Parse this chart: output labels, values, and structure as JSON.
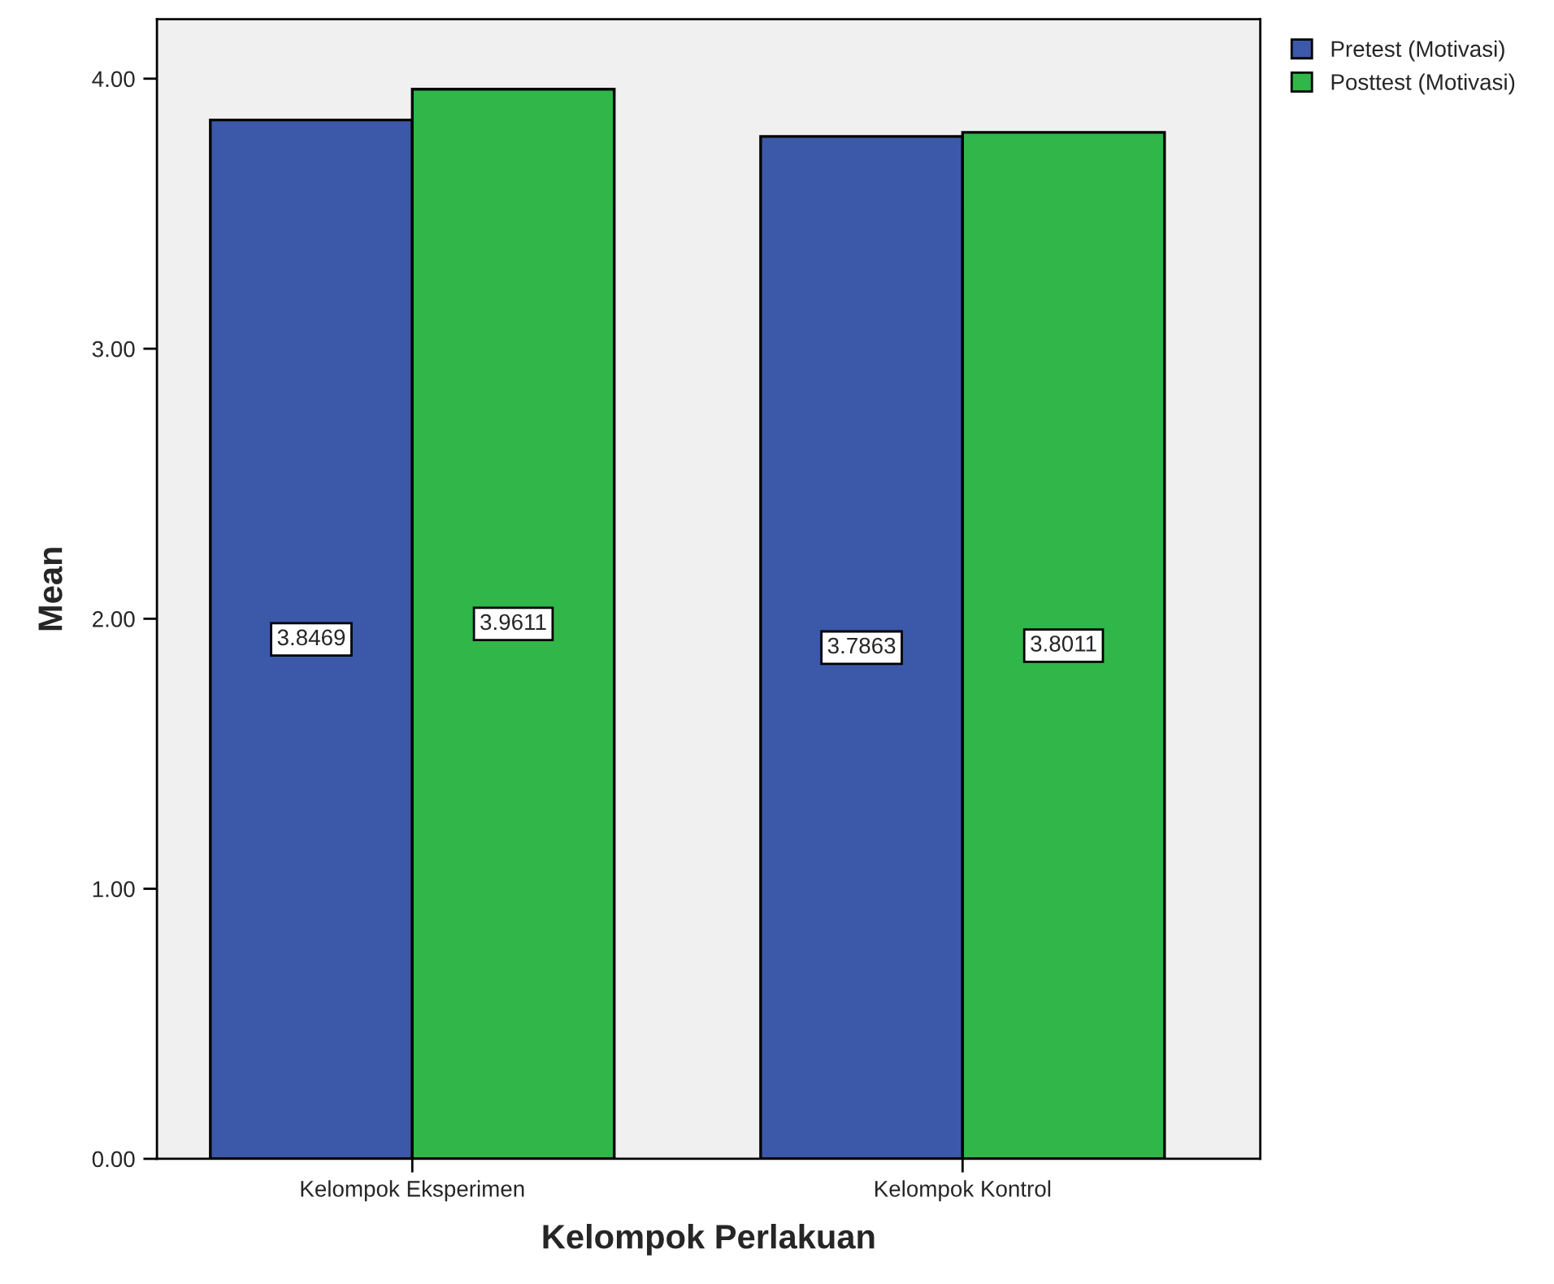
{
  "chart_data": {
    "type": "bar",
    "xlabel": "Kelompok Perlakuan",
    "ylabel": "Mean",
    "categories": [
      "Kelompok Eksperimen",
      "Kelompok Kontrol"
    ],
    "series": [
      {
        "name": "Pretest (Motivasi)",
        "color": "#3c58a8",
        "values": [
          3.8469,
          3.7863
        ]
      },
      {
        "name": "Posttest (Motivasi)",
        "color": "#31b649",
        "values": [
          3.9611,
          3.8011
        ]
      }
    ],
    "ylim": [
      0,
      4.22
    ],
    "yticks": [
      {
        "value": 0,
        "label": "0.00"
      },
      {
        "value": 1,
        "label": "1.00"
      },
      {
        "value": 2,
        "label": "2.00"
      },
      {
        "value": 3,
        "label": "3.00"
      },
      {
        "value": 4,
        "label": "4.00"
      }
    ],
    "data_labels": true,
    "legend": "top right",
    "grid": false
  }
}
